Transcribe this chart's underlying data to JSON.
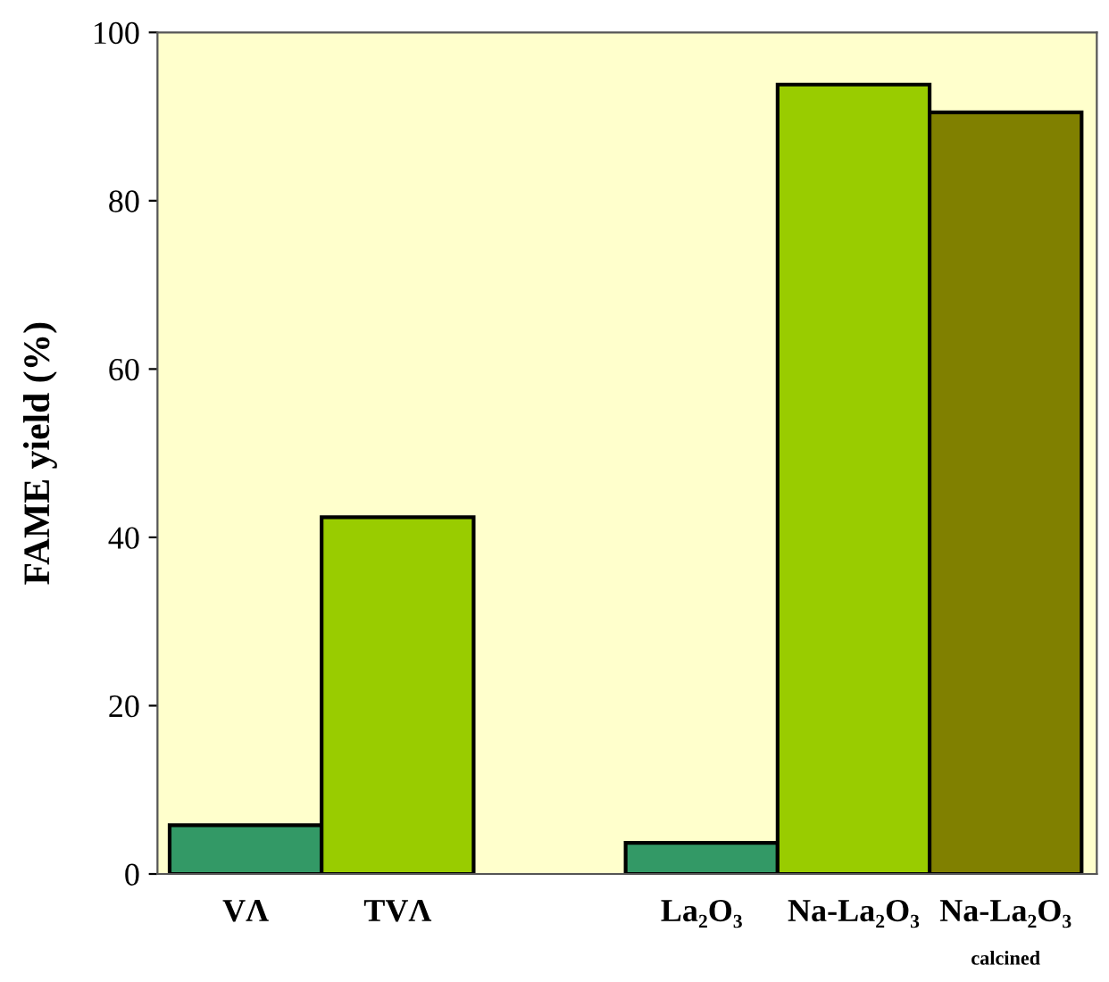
{
  "chart_data": {
    "type": "bar",
    "ylabel": "FAME yield (%)",
    "categories": [
      "VΛ",
      "TVΛ",
      null,
      "La₂O₃",
      "Na-La₂O₃",
      "Na-La₂O₃"
    ],
    "values": [
      5.8,
      42.4,
      null,
      3.7,
      93.8,
      90.5
    ],
    "colors": [
      "#339966",
      "#99cc00",
      "#99cc00",
      "#339966",
      "#99cc00",
      "#808000"
    ],
    "ylim": [
      0,
      100
    ],
    "yticks": [
      0,
      20,
      40,
      60,
      80,
      100
    ],
    "grid": false,
    "legend": false,
    "annotations": [
      "calcined"
    ]
  }
}
